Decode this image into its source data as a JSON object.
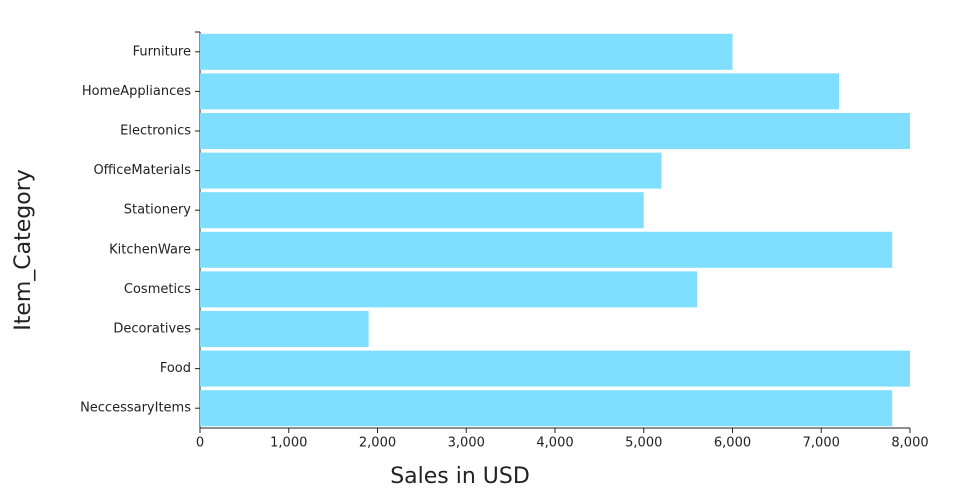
{
  "chart_data": {
    "type": "bar",
    "orientation": "horizontal",
    "x_label": "Sales in USD",
    "y_label": "Item_Category",
    "categories": [
      "Furniture",
      "HomeAppliances",
      "Electronics",
      "OfficeMaterials",
      "Stationery",
      "KitchenWare",
      "Cosmetics",
      "Decoratives",
      "Food",
      "NeccessaryItems"
    ],
    "values": [
      6000,
      7200,
      8000,
      5200,
      5000,
      7800,
      5600,
      1900,
      8000,
      7800
    ],
    "color": "#80dfff",
    "xlim": [
      0,
      8000
    ],
    "xticks": [
      0,
      {
        "value": 1000,
        "label": "1,000"
      },
      {
        "value": 2000,
        "label": "2,000"
      },
      {
        "value": 3000,
        "label": "3,000"
      },
      {
        "value": 4000,
        "label": "4,000"
      },
      {
        "value": 5000,
        "label": "5,000"
      },
      {
        "value": 6000,
        "label": "6,000"
      },
      {
        "value": 7000,
        "label": "7,000"
      },
      {
        "value": 8000,
        "label": "8,000"
      }
    ],
    "grid": false
  }
}
